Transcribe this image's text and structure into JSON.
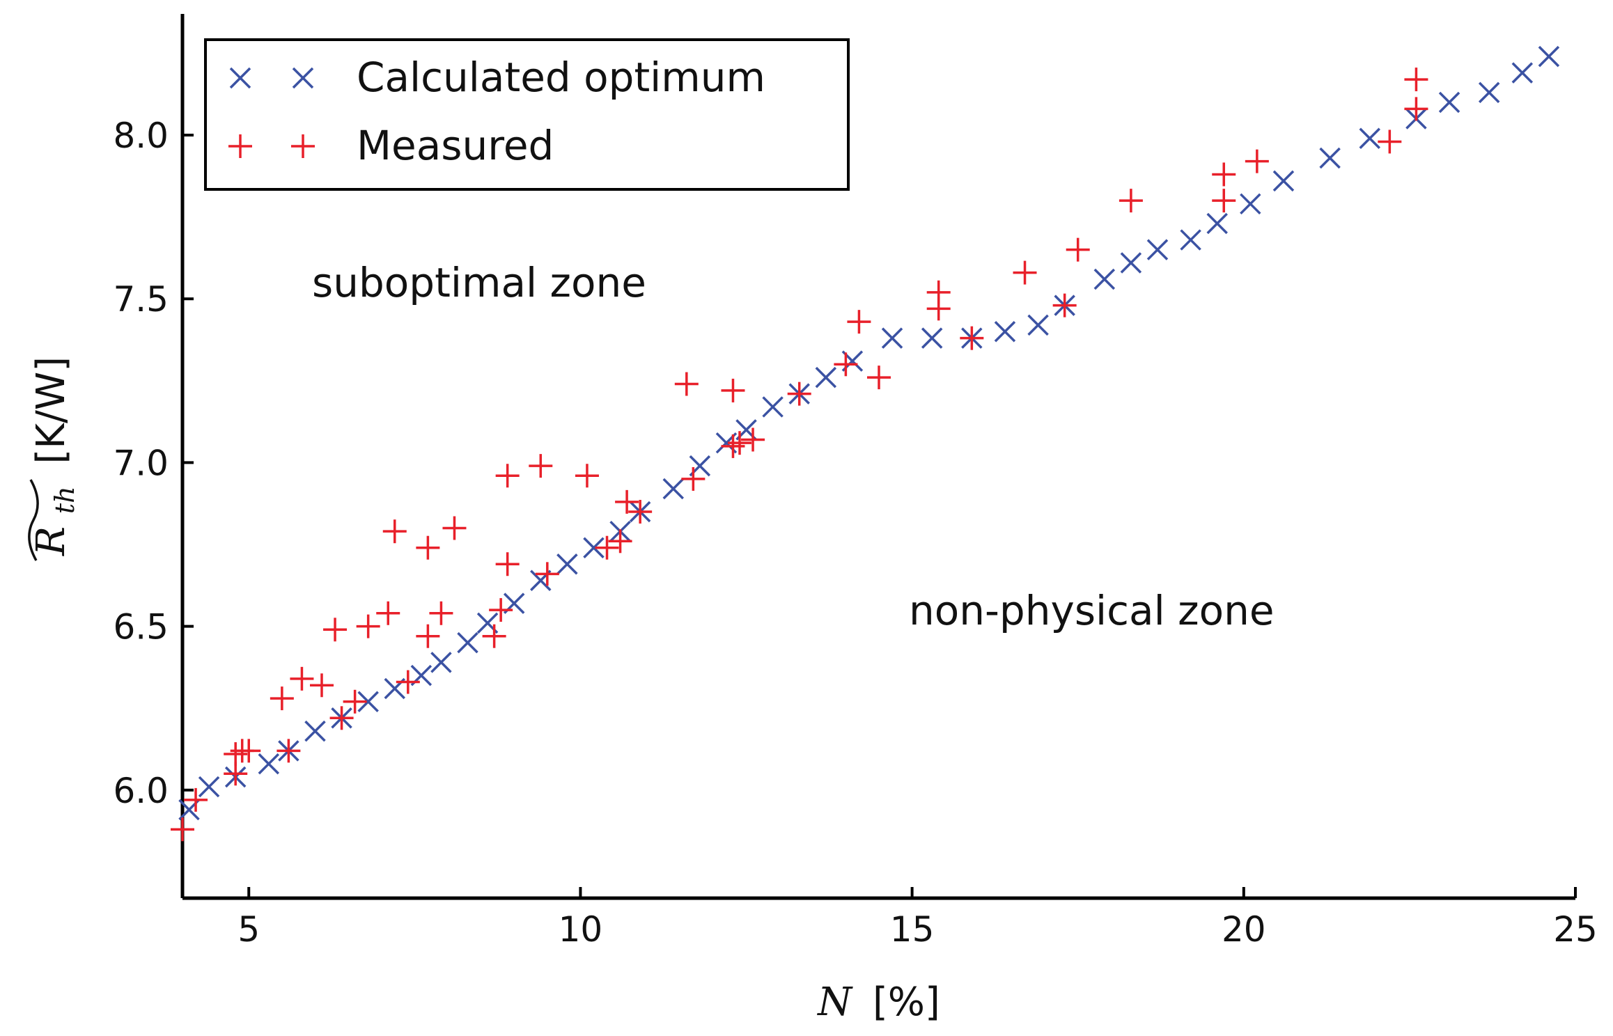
{
  "chart_data": {
    "type": "scatter",
    "xlabel": {
      "symbol": "N",
      "unit": "[%]"
    },
    "ylabel": {
      "symbol": "R",
      "subscript": "th",
      "unit": "[K/W]"
    },
    "xlim": [
      4,
      25
    ],
    "ylim": [
      5.67,
      8.37
    ],
    "xticks": [
      5,
      10,
      15,
      20,
      25
    ],
    "xtick_labels": [
      "5",
      "10",
      "15",
      "20",
      "25"
    ],
    "yticks": [
      6.0,
      6.5,
      7.0,
      7.5,
      8.0
    ],
    "ytick_labels": [
      "6.0",
      "6.5",
      "7.0",
      "7.5",
      "8.0"
    ],
    "grid": false,
    "legend_position": "top-left",
    "annotations": [
      {
        "text": "suboptimal zone",
        "x": 5.0,
        "y": 7.55
      },
      {
        "text": "non-physical zone",
        "x": 15.0,
        "y": 6.55
      }
    ],
    "series": [
      {
        "name": "Calculated optimum",
        "marker": "x",
        "color": "#3b52a3",
        "x": [
          4.1,
          4.4,
          4.8,
          5.3,
          5.6,
          6.0,
          6.4,
          6.8,
          7.2,
          7.6,
          7.9,
          8.3,
          8.6,
          9.0,
          9.4,
          9.8,
          10.2,
          10.6,
          10.9,
          11.4,
          11.8,
          12.2,
          12.5,
          12.9,
          13.3,
          13.7,
          14.1,
          14.7,
          15.3,
          15.9,
          16.4,
          16.9,
          17.3,
          17.9,
          18.3,
          18.7,
          19.2,
          19.6,
          20.1,
          20.6,
          21.3,
          21.9,
          22.6,
          23.1,
          23.7,
          24.2,
          24.6
        ],
        "y": [
          5.94,
          6.01,
          6.04,
          6.08,
          6.12,
          6.18,
          6.22,
          6.27,
          6.31,
          6.35,
          6.39,
          6.45,
          6.51,
          6.57,
          6.64,
          6.69,
          6.74,
          6.79,
          6.85,
          6.92,
          6.99,
          7.06,
          7.1,
          7.17,
          7.21,
          7.26,
          7.31,
          7.38,
          7.38,
          7.38,
          7.4,
          7.42,
          7.48,
          7.56,
          7.61,
          7.65,
          7.68,
          7.73,
          7.79,
          7.86,
          7.93,
          7.99,
          8.05,
          8.1,
          8.13,
          8.19,
          8.24
        ]
      },
      {
        "name": "Measured",
        "marker": "+",
        "color": "#e8202a",
        "x": [
          4.0,
          4.2,
          4.8,
          4.8,
          4.9,
          5.0,
          5.5,
          5.6,
          5.8,
          6.1,
          6.3,
          6.4,
          6.6,
          6.8,
          7.1,
          7.2,
          7.4,
          7.7,
          7.7,
          7.9,
          8.1,
          8.7,
          8.8,
          8.9,
          8.9,
          9.4,
          9.5,
          10.1,
          10.4,
          10.6,
          10.7,
          10.9,
          11.6,
          11.7,
          12.3,
          12.3,
          12.4,
          12.6,
          13.3,
          14.0,
          14.2,
          14.5,
          15.4,
          15.4,
          15.9,
          16.7,
          17.3,
          17.5,
          18.3,
          19.7,
          19.7,
          20.2,
          22.2,
          22.6,
          22.6
        ],
        "y": [
          5.88,
          5.97,
          6.05,
          6.11,
          6.12,
          6.12,
          6.28,
          6.12,
          6.34,
          6.32,
          6.49,
          6.22,
          6.27,
          6.5,
          6.54,
          6.79,
          6.33,
          6.47,
          6.74,
          6.54,
          6.8,
          6.47,
          6.55,
          6.69,
          6.96,
          6.99,
          6.66,
          6.96,
          6.74,
          6.76,
          6.88,
          6.85,
          7.24,
          6.95,
          7.05,
          7.22,
          7.06,
          7.07,
          7.21,
          7.3,
          7.43,
          7.26,
          7.52,
          7.47,
          7.38,
          7.58,
          7.48,
          7.65,
          7.8,
          7.8,
          7.88,
          7.92,
          7.98,
          8.08,
          8.17
        ]
      }
    ]
  }
}
